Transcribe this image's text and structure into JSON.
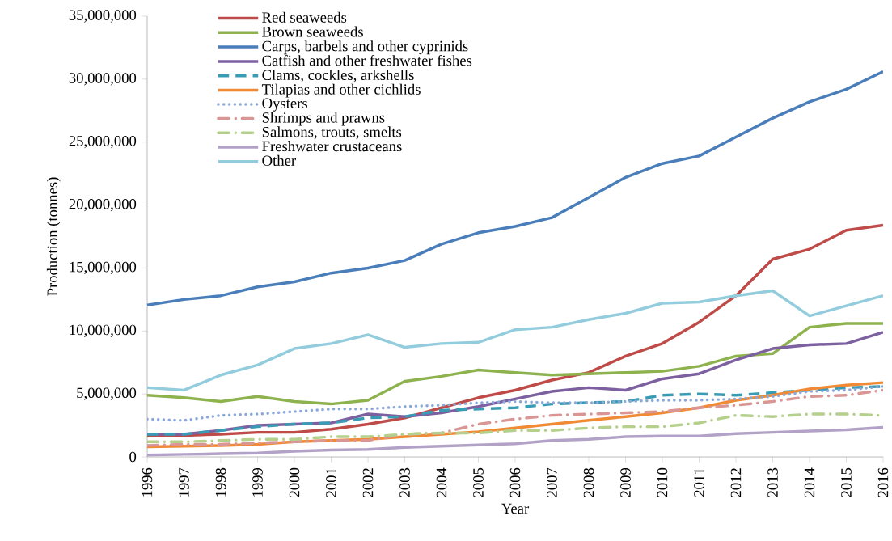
{
  "chart_data": {
    "type": "line",
    "xlabel": "Year",
    "ylabel": "Production (tonnes)",
    "categories": [
      "1996",
      "1997",
      "1998",
      "1999",
      "2000",
      "2001",
      "2002",
      "2003",
      "2004",
      "2005",
      "2006",
      "2007",
      "2008",
      "2009",
      "2010",
      "2011",
      "2012",
      "2013",
      "2014",
      "2015",
      "2016"
    ],
    "ylim": [
      0,
      35000000
    ],
    "yticks": [
      {
        "value": 0,
        "label": "0"
      },
      {
        "value": 5000000,
        "label": "5,000,000"
      },
      {
        "value": 10000000,
        "label": "10,000,000"
      },
      {
        "value": 15000000,
        "label": "15,000,000"
      },
      {
        "value": 20000000,
        "label": "20,000,000"
      },
      {
        "value": 25000000,
        "label": "25,000,000"
      },
      {
        "value": 30000000,
        "label": "30,000,000"
      },
      {
        "value": 35000000,
        "label": "35,000,000"
      }
    ],
    "legend": "top left",
    "series": [
      {
        "name": "Red seaweeds",
        "color": "#be4b48",
        "line_style": "solid",
        "values": [
          1700000,
          1700000,
          1800000,
          1950000,
          1950000,
          2200000,
          2600000,
          3100000,
          3900000,
          4700000,
          5300000,
          6100000,
          6700000,
          8000000,
          9000000,
          10700000,
          12800000,
          15700000,
          16500000,
          18000000,
          18400000
        ]
      },
      {
        "name": "Brown seaweeds",
        "color": "#8db24e",
        "line_style": "solid",
        "values": [
          4900000,
          4700000,
          4400000,
          4800000,
          4400000,
          4200000,
          4500000,
          6000000,
          6400000,
          6900000,
          6700000,
          6500000,
          6600000,
          6700000,
          6800000,
          7200000,
          8000000,
          8200000,
          10300000,
          10600000,
          10600000
        ]
      },
      {
        "name": "Carps, barbels and other cyprinids",
        "color": "#4a7ebb",
        "line_style": "solid",
        "values": [
          12050000,
          12500000,
          12800000,
          13500000,
          13900000,
          14600000,
          15000000,
          15600000,
          16900000,
          17800000,
          18300000,
          19000000,
          20600000,
          22200000,
          23300000,
          23900000,
          25400000,
          26900000,
          28200000,
          29200000,
          30600000
        ]
      },
      {
        "name": "Catfish and other freshwater fishes",
        "color": "#7d60a0",
        "line_style": "solid",
        "values": [
          1800000,
          1800000,
          2100000,
          2500000,
          2600000,
          2700000,
          3400000,
          3200000,
          3500000,
          4000000,
          4600000,
          5200000,
          5500000,
          5300000,
          6200000,
          6600000,
          7700000,
          8600000,
          8900000,
          9000000,
          9900000
        ]
      },
      {
        "name": "Clams, cockles, arkshells",
        "color": "#3a9bb5",
        "line_style": "dashed",
        "values": [
          1800000,
          1800000,
          2100000,
          2400000,
          2600000,
          2700000,
          3100000,
          3200000,
          3700000,
          3800000,
          3900000,
          4200000,
          4300000,
          4400000,
          4900000,
          5000000,
          4900000,
          5100000,
          5300000,
          5500000,
          5600000
        ]
      },
      {
        "name": "Tilapias and other cichlids",
        "color": "#f08a35",
        "line_style": "solid",
        "values": [
          800000,
          850000,
          900000,
          1000000,
          1200000,
          1300000,
          1400000,
          1600000,
          1800000,
          2000000,
          2300000,
          2600000,
          2900000,
          3200000,
          3500000,
          3900000,
          4500000,
          4900000,
          5400000,
          5700000,
          5900000
        ]
      },
      {
        "name": "Oysters",
        "color": "#8aa8d8",
        "line_style": "dotted",
        "values": [
          3000000,
          2900000,
          3300000,
          3400000,
          3600000,
          3800000,
          3800000,
          4000000,
          4100000,
          4300000,
          4400000,
          4300000,
          4300000,
          4400000,
          4500000,
          4500000,
          4600000,
          4800000,
          5200000,
          5300000,
          5600000
        ]
      },
      {
        "name": "Shrimps and prawns",
        "color": "#d99694",
        "line_style": "dashdot",
        "values": [
          900000,
          1000000,
          1000000,
          1100000,
          1200000,
          1300000,
          1300000,
          1800000,
          1900000,
          2600000,
          3000000,
          3300000,
          3400000,
          3500000,
          3600000,
          3900000,
          4100000,
          4400000,
          4800000,
          4900000,
          5300000
        ]
      },
      {
        "name": "Salmons, trouts, smelts",
        "color": "#b5d08c",
        "line_style": "dashdot",
        "values": [
          1200000,
          1200000,
          1300000,
          1400000,
          1400000,
          1600000,
          1600000,
          1800000,
          1900000,
          1900000,
          2100000,
          2100000,
          2300000,
          2400000,
          2400000,
          2700000,
          3300000,
          3200000,
          3400000,
          3400000,
          3300000
        ]
      },
      {
        "name": "Freshwater crustaceans",
        "color": "#b3a2c7",
        "line_style": "solid",
        "values": [
          150000,
          200000,
          250000,
          300000,
          450000,
          550000,
          600000,
          750000,
          850000,
          950000,
          1050000,
          1300000,
          1400000,
          1600000,
          1650000,
          1650000,
          1850000,
          1950000,
          2050000,
          2150000,
          2350000
        ]
      },
      {
        "name": "Other",
        "color": "#93cddd",
        "line_style": "solid",
        "values": [
          5500000,
          5300000,
          6500000,
          7300000,
          8600000,
          9000000,
          9700000,
          8700000,
          9000000,
          9100000,
          10100000,
          10300000,
          10900000,
          11400000,
          12200000,
          12300000,
          12800000,
          13200000,
          11200000,
          12000000,
          12800000
        ]
      }
    ]
  }
}
